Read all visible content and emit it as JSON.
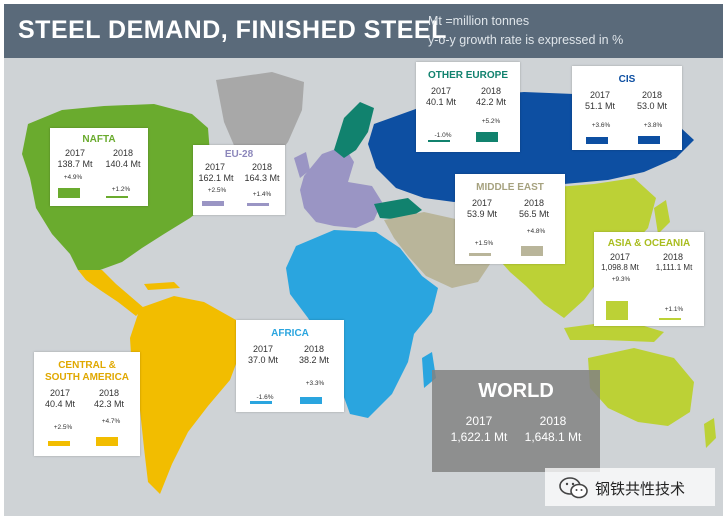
{
  "header": {
    "title": "STEEL DEMAND, FINISHED STEEL",
    "unit_note": "Mt =million tonnes",
    "growth_note": "y-o-y growth rate is expressed in %",
    "background_color": "#5a6a7a"
  },
  "regions": [
    {
      "key": "nafta",
      "name": "NAFTA",
      "color": "#6aab2e",
      "year_2017": "2017",
      "year_2018": "2018",
      "value_2017": "138.7 Mt",
      "value_2018": "140.4 Mt",
      "growth_2017": "+4.9%",
      "growth_2018": "+1.2%",
      "growth_2017_pct": 4.9,
      "growth_2018_pct": 1.2
    },
    {
      "key": "eu28",
      "name": "EU-28",
      "color": "#9a95c4",
      "year_2017": "2017",
      "year_2018": "2018",
      "value_2017": "162.1 Mt",
      "value_2018": "164.3 Mt",
      "growth_2017": "+2.5%",
      "growth_2018": "+1.4%",
      "growth_2017_pct": 2.5,
      "growth_2018_pct": 1.4
    },
    {
      "key": "other_europe",
      "name": "OTHER EUROPE",
      "color": "#11826e",
      "year_2017": "2017",
      "year_2018": "2018",
      "value_2017": "40.1 Mt",
      "value_2018": "42.2 Mt",
      "growth_2017": "-1.0%",
      "growth_2018": "+5.2%",
      "growth_2017_pct": -1.0,
      "growth_2018_pct": 5.2
    },
    {
      "key": "cis",
      "name": "CIS",
      "color": "#0d4fa2",
      "year_2017": "2017",
      "year_2018": "2018",
      "value_2017": "51.1 Mt",
      "value_2018": "53.0 Mt",
      "growth_2017": "+3.6%",
      "growth_2018": "+3.8%",
      "growth_2017_pct": 3.6,
      "growth_2018_pct": 3.8
    },
    {
      "key": "middle_east",
      "name": "MIDDLE EAST",
      "color": "#b9b59a",
      "year_2017": "2017",
      "year_2018": "2018",
      "value_2017": "53.9 Mt",
      "value_2018": "56.5 Mt",
      "growth_2017": "+1.5%",
      "growth_2018": "+4.8%",
      "growth_2017_pct": 1.5,
      "growth_2018_pct": 4.8
    },
    {
      "key": "asia_oceania",
      "name": "ASIA & OCEANIA",
      "color": "#bcd136",
      "year_2017": "2017",
      "year_2018": "2018",
      "value_2017": "1,098.8 Mt",
      "value_2018": "1,111.1 Mt",
      "growth_2017": "+9.3%",
      "growth_2018": "+1.1%",
      "growth_2017_pct": 9.3,
      "growth_2018_pct": 1.1
    },
    {
      "key": "africa",
      "name": "AFRICA",
      "color": "#2aa5df",
      "year_2017": "2017",
      "year_2018": "2018",
      "value_2017": "37.0 Mt",
      "value_2018": "38.2 Mt",
      "growth_2017": "-1.6%",
      "growth_2018": "+3.3%",
      "growth_2017_pct": -1.6,
      "growth_2018_pct": 3.3
    },
    {
      "key": "csa",
      "name": "CENTRAL & SOUTH AMERICA",
      "color": "#f2bd00",
      "year_2017": "2017",
      "year_2018": "2018",
      "value_2017": "40.4 Mt",
      "value_2018": "42.3 Mt",
      "growth_2017": "+2.5%",
      "growth_2018": "+4.7%",
      "growth_2017_pct": 2.5,
      "growth_2018_pct": 4.7
    }
  ],
  "world": {
    "title": "WORLD",
    "year_2017": "2017",
    "year_2018": "2018",
    "value_2017": "1,622.1 Mt",
    "value_2018": "1,648.1 Mt"
  },
  "watermark": {
    "text": "钢铁共性技术",
    "icon": "wechat-icon"
  },
  "colors": {
    "ocean": "#cfd3d6",
    "greenland": "#a9a9a9",
    "header": "#5a6a7a"
  }
}
